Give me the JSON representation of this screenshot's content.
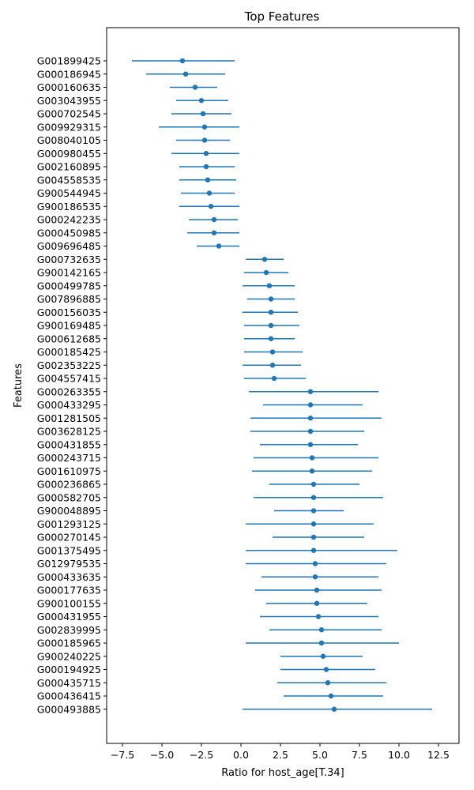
{
  "chart_data": {
    "type": "forest",
    "title": "Top Features",
    "xlabel": "Ratio for host_age[T.34]",
    "ylabel": "Features",
    "xlim": [
      -8.5,
      13.8
    ],
    "xticks": [
      -7.5,
      -5.0,
      -2.5,
      0.0,
      2.5,
      5.0,
      7.5,
      10.0,
      12.5
    ],
    "xtick_labels": [
      "−7.5",
      "−5.0",
      "−2.5",
      "0.0",
      "2.5",
      "5.0",
      "7.5",
      "10.0",
      "12.5"
    ],
    "grid": false,
    "color": "#1f77b4",
    "features": [
      {
        "name": "G001899425",
        "value": -3.7,
        "low": -6.9,
        "high": -0.4
      },
      {
        "name": "G000186945",
        "value": -3.5,
        "low": -6.0,
        "high": -1.0
      },
      {
        "name": "G000160635",
        "value": -2.9,
        "low": -4.5,
        "high": -1.5
      },
      {
        "name": "G003043955",
        "value": -2.5,
        "low": -4.1,
        "high": -0.8
      },
      {
        "name": "G000702545",
        "value": -2.4,
        "low": -4.4,
        "high": -0.6
      },
      {
        "name": "G009929315",
        "value": -2.3,
        "low": -5.2,
        "high": -0.1
      },
      {
        "name": "G008040105",
        "value": -2.3,
        "low": -4.1,
        "high": -0.7
      },
      {
        "name": "G000980455",
        "value": -2.2,
        "low": -4.4,
        "high": -0.1
      },
      {
        "name": "G002160895",
        "value": -2.2,
        "low": -3.9,
        "high": -0.4
      },
      {
        "name": "G004558535",
        "value": -2.1,
        "low": -3.9,
        "high": -0.3
      },
      {
        "name": "G900544945",
        "value": -2.0,
        "low": -3.8,
        "high": -0.4
      },
      {
        "name": "G900186535",
        "value": -1.9,
        "low": -3.9,
        "high": -0.1
      },
      {
        "name": "G000242235",
        "value": -1.7,
        "low": -3.3,
        "high": -0.2
      },
      {
        "name": "G000450985",
        "value": -1.7,
        "low": -3.4,
        "high": -0.1
      },
      {
        "name": "G009696485",
        "value": -1.4,
        "low": -2.8,
        "high": -0.1
      },
      {
        "name": "G000732635",
        "value": 1.5,
        "low": 0.3,
        "high": 2.7
      },
      {
        "name": "G900142165",
        "value": 1.6,
        "low": 0.2,
        "high": 3.0
      },
      {
        "name": "G000499785",
        "value": 1.8,
        "low": 0.1,
        "high": 3.4
      },
      {
        "name": "G007896885",
        "value": 1.9,
        "low": 0.4,
        "high": 3.4
      },
      {
        "name": "G000156035",
        "value": 1.9,
        "low": 0.1,
        "high": 3.6
      },
      {
        "name": "G900169485",
        "value": 1.9,
        "low": 0.2,
        "high": 3.7
      },
      {
        "name": "G000612685",
        "value": 1.9,
        "low": 0.2,
        "high": 3.4
      },
      {
        "name": "G000185425",
        "value": 2.0,
        "low": 0.2,
        "high": 3.9
      },
      {
        "name": "G002353225",
        "value": 2.0,
        "low": 0.1,
        "high": 3.8
      },
      {
        "name": "G004557415",
        "value": 2.1,
        "low": 0.2,
        "high": 4.1
      },
      {
        "name": "G000263355",
        "value": 4.4,
        "low": 0.5,
        "high": 8.7
      },
      {
        "name": "G000433295",
        "value": 4.4,
        "low": 1.4,
        "high": 7.7
      },
      {
        "name": "G001281505",
        "value": 4.4,
        "low": 0.6,
        "high": 8.9
      },
      {
        "name": "G003628125",
        "value": 4.4,
        "low": 0.6,
        "high": 7.8
      },
      {
        "name": "G000431855",
        "value": 4.4,
        "low": 1.2,
        "high": 7.4
      },
      {
        "name": "G000243715",
        "value": 4.5,
        "low": 0.8,
        "high": 8.7
      },
      {
        "name": "G001610975",
        "value": 4.5,
        "low": 0.7,
        "high": 8.3
      },
      {
        "name": "G000236865",
        "value": 4.6,
        "low": 1.8,
        "high": 7.5
      },
      {
        "name": "G000582705",
        "value": 4.6,
        "low": 0.8,
        "high": 9.0
      },
      {
        "name": "G900048895",
        "value": 4.6,
        "low": 2.1,
        "high": 6.5
      },
      {
        "name": "G001293125",
        "value": 4.6,
        "low": 0.3,
        "high": 8.4
      },
      {
        "name": "G000270145",
        "value": 4.6,
        "low": 2.0,
        "high": 7.8
      },
      {
        "name": "G001375495",
        "value": 4.6,
        "low": 0.3,
        "high": 9.9
      },
      {
        "name": "G012979535",
        "value": 4.7,
        "low": 0.3,
        "high": 9.2
      },
      {
        "name": "G000433635",
        "value": 4.7,
        "low": 1.3,
        "high": 8.7
      },
      {
        "name": "G000177635",
        "value": 4.8,
        "low": 0.9,
        "high": 8.9
      },
      {
        "name": "G900100155",
        "value": 4.8,
        "low": 1.6,
        "high": 8.0
      },
      {
        "name": "G000431955",
        "value": 4.9,
        "low": 1.2,
        "high": 8.7
      },
      {
        "name": "G002839995",
        "value": 5.1,
        "low": 1.8,
        "high": 8.9
      },
      {
        "name": "G000185965",
        "value": 5.1,
        "low": 0.3,
        "high": 10.0
      },
      {
        "name": "G900240225",
        "value": 5.2,
        "low": 2.5,
        "high": 7.7
      },
      {
        "name": "G000194925",
        "value": 5.4,
        "low": 2.5,
        "high": 8.5
      },
      {
        "name": "G000435715",
        "value": 5.5,
        "low": 2.3,
        "high": 9.2
      },
      {
        "name": "G000436415",
        "value": 5.7,
        "low": 2.7,
        "high": 9.0
      },
      {
        "name": "G000493885",
        "value": 5.9,
        "low": 0.1,
        "high": 12.1
      }
    ]
  }
}
